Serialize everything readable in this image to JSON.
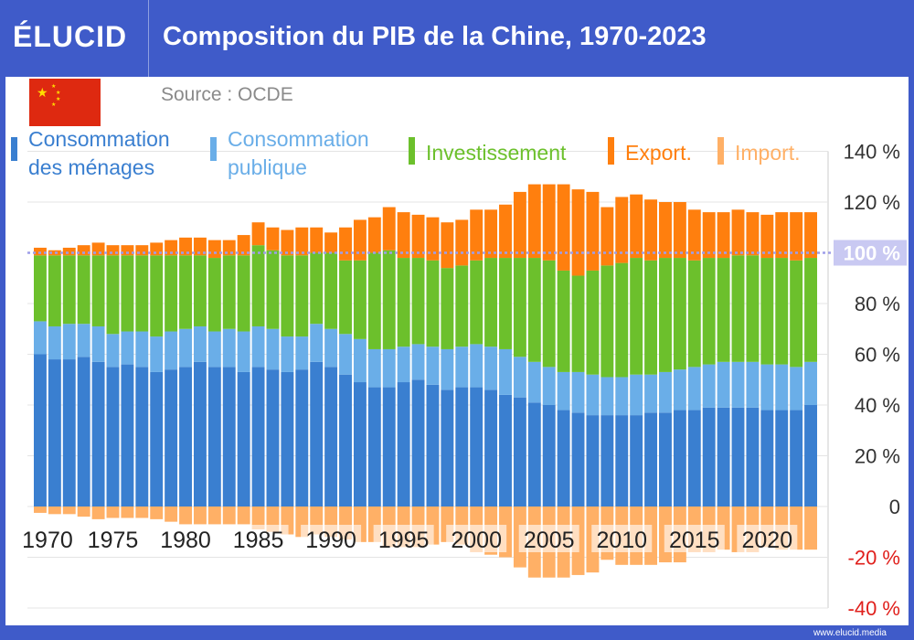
{
  "header": {
    "logo": "ÉLUCID",
    "title": "Composition du PIB de la Chine, 1970-2023"
  },
  "source": "Source : OCDE",
  "footer": "www.elucid.media",
  "colors": {
    "household": "#3a7fd0",
    "public": "#6aaee8",
    "investment": "#6cc02c",
    "exports": "#ff7f0e",
    "imports": "#ffb066",
    "ref_line": "#9e9ee8",
    "negative_labels": "#e0201c"
  },
  "chart_data": {
    "type": "bar",
    "stacked": true,
    "title": "Composition du PIB de la Chine, 1970-2023",
    "ylim": [
      -40,
      140
    ],
    "yticks": [
      {
        "v": 140,
        "label": "140 %"
      },
      {
        "v": 120,
        "label": "120 %"
      },
      {
        "v": 100,
        "label": "100 %"
      },
      {
        "v": 80,
        "label": "80 %"
      },
      {
        "v": 60,
        "label": "60 %"
      },
      {
        "v": 40,
        "label": "40 %"
      },
      {
        "v": 20,
        "label": "20 %"
      },
      {
        "v": 0,
        "label": "0"
      },
      {
        "v": -20,
        "label": "-20 %"
      },
      {
        "v": -40,
        "label": "-40 %"
      }
    ],
    "xtick_labels": [
      "1970",
      "1975",
      "1980",
      "1985",
      "1990",
      "1995",
      "2000",
      "2005",
      "2010",
      "2015",
      "2020"
    ],
    "grid": true,
    "reference_line": {
      "value": 100,
      "label": "100 %"
    },
    "legend_placement": "top",
    "x": [
      1970,
      1971,
      1972,
      1973,
      1974,
      1975,
      1976,
      1977,
      1978,
      1979,
      1980,
      1981,
      1982,
      1983,
      1984,
      1985,
      1986,
      1987,
      1988,
      1989,
      1990,
      1991,
      1992,
      1993,
      1994,
      1995,
      1996,
      1997,
      1998,
      1999,
      2000,
      2001,
      2002,
      2003,
      2004,
      2005,
      2006,
      2007,
      2008,
      2009,
      2010,
      2011,
      2012,
      2013,
      2014,
      2015,
      2016,
      2017,
      2018,
      2019,
      2020,
      2021,
      2022,
      2023
    ],
    "series": [
      {
        "key": "household",
        "name": "Consommation des ménages",
        "values": [
          60,
          58,
          58,
          59,
          57,
          55,
          56,
          55,
          53,
          54,
          55,
          57,
          55,
          55,
          53,
          55,
          54,
          53,
          54,
          57,
          55,
          52,
          49,
          47,
          47,
          49,
          50,
          48,
          46,
          47,
          47,
          46,
          44,
          43,
          41,
          40,
          38,
          37,
          36,
          36,
          36,
          36,
          37,
          37,
          38,
          38,
          39,
          39,
          39,
          39,
          38,
          38,
          38,
          40
        ]
      },
      {
        "key": "public",
        "name": "Consommation publique",
        "values": [
          13,
          13,
          14,
          13,
          14,
          13,
          13,
          14,
          14,
          15,
          15,
          14,
          14,
          15,
          16,
          16,
          16,
          14,
          13,
          15,
          15,
          16,
          17,
          15,
          15,
          14,
          14,
          15,
          16,
          16,
          17,
          17,
          18,
          16,
          16,
          15,
          15,
          16,
          16,
          15,
          15,
          16,
          15,
          16,
          16,
          17,
          17,
          18,
          18,
          18,
          18,
          18,
          17,
          17
        ]
      },
      {
        "key": "investment",
        "name": "Investissement",
        "values": [
          26,
          28,
          27,
          27,
          28,
          31,
          30,
          30,
          32,
          30,
          29,
          28,
          29,
          29,
          30,
          32,
          31,
          32,
          32,
          28,
          30,
          29,
          31,
          38,
          39,
          35,
          34,
          34,
          32,
          32,
          33,
          35,
          36,
          39,
          41,
          42,
          40,
          38,
          41,
          44,
          45,
          46,
          45,
          45,
          44,
          42,
          42,
          41,
          42,
          42,
          42,
          42,
          42,
          41
        ]
      },
      {
        "key": "exports",
        "name": "Export.",
        "values": [
          3,
          2,
          3,
          4,
          5,
          4,
          4,
          4,
          5,
          6,
          7,
          7,
          7,
          6,
          8,
          9,
          9,
          10,
          11,
          10,
          8,
          13,
          16,
          14,
          17,
          18,
          17,
          17,
          18,
          18,
          20,
          19,
          21,
          26,
          29,
          30,
          34,
          34,
          31,
          23,
          26,
          25,
          24,
          22,
          22,
          20,
          18,
          18,
          18,
          17,
          17,
          18,
          19,
          18
        ]
      },
      {
        "key": "imports",
        "name": "Import.",
        "values": [
          -2.5,
          -3,
          -3,
          -4,
          -5,
          -4.5,
          -4.5,
          -4.5,
          -5,
          -6,
          -7,
          -7,
          -7,
          -7,
          -7,
          -9,
          -10,
          -11,
          -12,
          -11,
          -12,
          -13,
          -14,
          -14,
          -16,
          -16,
          -16,
          -15,
          -14,
          -15,
          -18,
          -19,
          -20,
          -24,
          -28,
          -28,
          -28,
          -27,
          -26,
          -21,
          -23,
          -23,
          -23,
          -22,
          -22,
          -18,
          -18,
          -17,
          -18,
          -18,
          -16,
          -17,
          -17,
          -17
        ]
      }
    ]
  }
}
